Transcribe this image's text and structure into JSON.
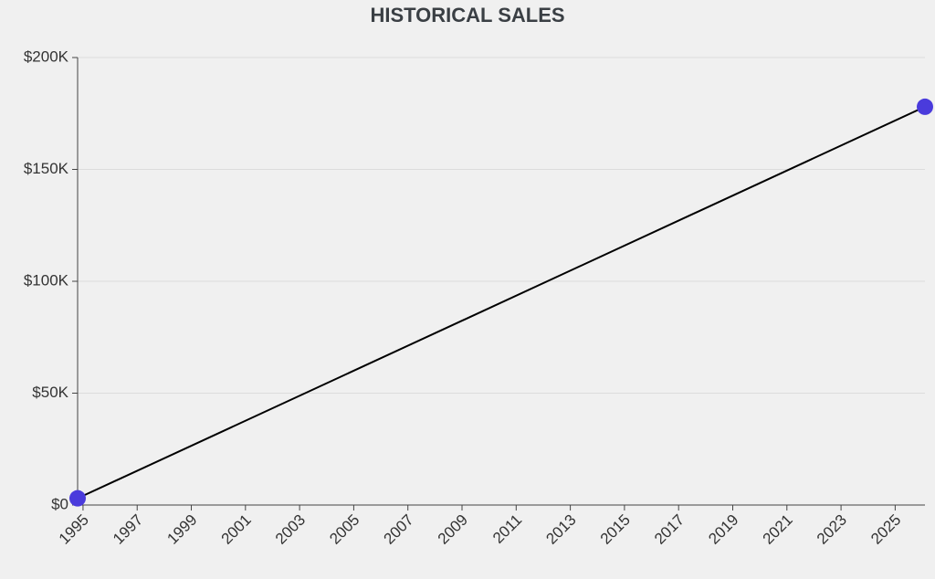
{
  "chart_data": {
    "type": "line",
    "title": "HISTORICAL SALES",
    "x": [
      1994.8,
      2026.1
    ],
    "series": [
      {
        "color": "#4a3bdc",
        "values": [
          3000,
          178000
        ]
      }
    ],
    "xlim": [
      1994.8,
      2026.1
    ],
    "xticks": [
      1995,
      1997,
      1999,
      2001,
      2003,
      2005,
      2007,
      2009,
      2011,
      2013,
      2015,
      2017,
      2019,
      2021,
      2023,
      2025
    ],
    "ylim": [
      0,
      200000
    ],
    "yticks": [
      {
        "value": 0,
        "label": "$0"
      },
      {
        "value": 50000,
        "label": "$50K"
      },
      {
        "value": 100000,
        "label": "$100K"
      },
      {
        "value": 150000,
        "label": "$150K"
      },
      {
        "value": 200000,
        "label": "$200K"
      }
    ],
    "grid": true
  }
}
